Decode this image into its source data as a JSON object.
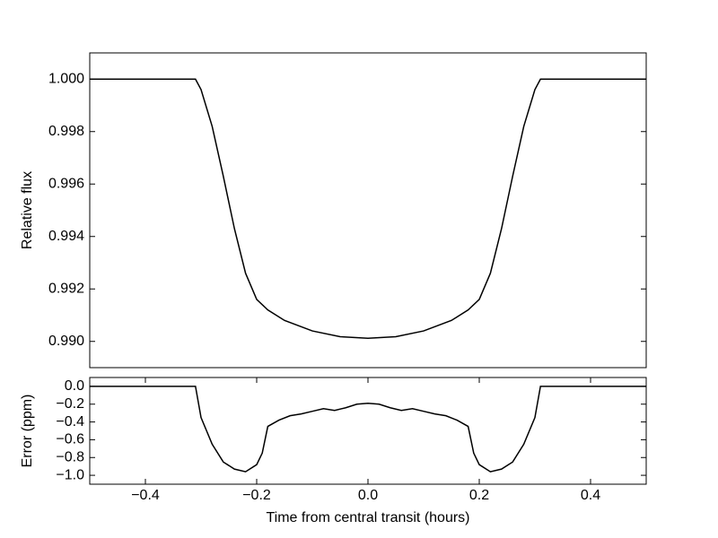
{
  "chart_data": [
    {
      "type": "line",
      "ylabel": "Relative flux",
      "xlim": [
        -0.5,
        0.5
      ],
      "ylim": [
        0.989,
        1.001
      ],
      "yticks": [
        {
          "value": 0.99,
          "label": "0.990"
        },
        {
          "value": 0.992,
          "label": "0.992"
        },
        {
          "value": 0.994,
          "label": "0.994"
        },
        {
          "value": 0.996,
          "label": "0.996"
        },
        {
          "value": 0.998,
          "label": "0.998"
        },
        {
          "value": 1.0,
          "label": "1.000"
        }
      ],
      "color": "#000000",
      "x": [
        -0.5,
        -0.31,
        -0.3,
        -0.28,
        -0.26,
        -0.24,
        -0.22,
        -0.2,
        -0.18,
        -0.15,
        -0.1,
        -0.05,
        0,
        0.05,
        0.1,
        0.15,
        0.18,
        0.2,
        0.22,
        0.24,
        0.26,
        0.28,
        0.3,
        0.31,
        0.5
      ],
      "values": [
        1.0,
        1.0,
        0.9996,
        0.9982,
        0.9963,
        0.9943,
        0.9926,
        0.9916,
        0.9912,
        0.9908,
        0.9904,
        0.99018,
        0.99012,
        0.99018,
        0.9904,
        0.9908,
        0.9912,
        0.9916,
        0.9926,
        0.9943,
        0.9963,
        0.9982,
        0.9996,
        1.0,
        1.0
      ]
    },
    {
      "type": "line",
      "ylabel": "Error (ppm)",
      "xlabel": "Time from central transit (hours)",
      "xlim": [
        -0.5,
        0.5
      ],
      "ylim": [
        -1.1,
        0.1
      ],
      "yticks": [
        {
          "value": -1.0,
          "label": "−1.0"
        },
        {
          "value": -0.8,
          "label": "−0.8"
        },
        {
          "value": -0.6,
          "label": "−0.6"
        },
        {
          "value": -0.4,
          "label": "−0.4"
        },
        {
          "value": -0.2,
          "label": "−0.2"
        },
        {
          "value": 0,
          "label": "0.0"
        }
      ],
      "xticks": [
        {
          "value": -0.4,
          "label": "−0.4"
        },
        {
          "value": -0.2,
          "label": "−0.2"
        },
        {
          "value": 0,
          "label": "0.0"
        },
        {
          "value": 0.2,
          "label": "0.2"
        },
        {
          "value": 0.4,
          "label": "0.4"
        }
      ],
      "color": "#000000",
      "x": [
        -0.5,
        -0.31,
        -0.3,
        -0.28,
        -0.26,
        -0.24,
        -0.22,
        -0.2,
        -0.19,
        -0.18,
        -0.16,
        -0.14,
        -0.12,
        -0.1,
        -0.08,
        -0.06,
        -0.04,
        -0.02,
        0,
        0.02,
        0.04,
        0.06,
        0.08,
        0.1,
        0.12,
        0.14,
        0.16,
        0.18,
        0.19,
        0.2,
        0.22,
        0.24,
        0.26,
        0.28,
        0.3,
        0.31,
        0.5
      ],
      "values": [
        0,
        0,
        -0.35,
        -0.65,
        -0.85,
        -0.93,
        -0.96,
        -0.88,
        -0.75,
        -0.45,
        -0.38,
        -0.33,
        -0.31,
        -0.28,
        -0.25,
        -0.27,
        -0.24,
        -0.2,
        -0.19,
        -0.2,
        -0.24,
        -0.27,
        -0.25,
        -0.28,
        -0.31,
        -0.33,
        -0.38,
        -0.45,
        -0.75,
        -0.88,
        -0.96,
        -0.93,
        -0.85,
        -0.65,
        -0.35,
        0,
        0
      ]
    }
  ]
}
